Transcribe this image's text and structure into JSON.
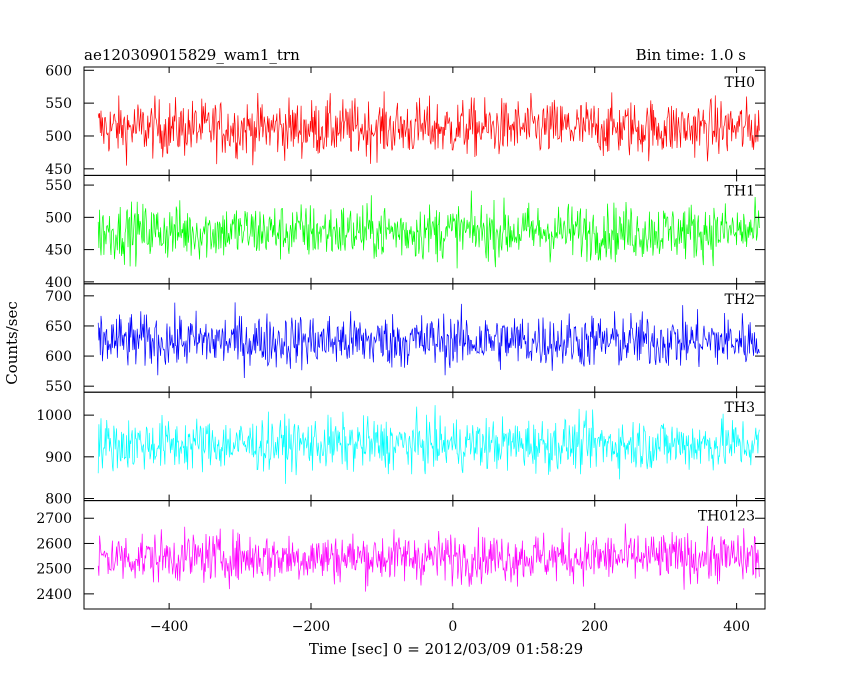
{
  "header": {
    "title": "ae120309015829_wam1_trn",
    "bin_time": "Bin time: 1.0 s"
  },
  "axes": {
    "xlabel": "Time [sec] 0 = 2012/03/09 01:58:29",
    "ylabel": "Counts/sec"
  },
  "chart_data": {
    "type": "line",
    "title": "ae120309015829_wam1_trn",
    "subtitle": "Bin time: 1.0 s",
    "xlabel": "Time [sec] 0 = 2012/03/09 01:58:29",
    "ylabel": "Counts/sec",
    "xlim": [
      -520,
      440
    ],
    "x_start": -500,
    "x_end": 432,
    "bin_time": 1.0,
    "xticks": [
      -400,
      -200,
      0,
      200,
      400
    ],
    "grid": false,
    "series": [
      {
        "name": "TH0",
        "color": "#ff0000",
        "ylim": [
          440,
          605
        ],
        "yticks": [
          450,
          500,
          550,
          600
        ],
        "mean": 512,
        "noise": 22,
        "min": 440,
        "max": 605
      },
      {
        "name": "TH1",
        "color": "#00ff00",
        "ylim": [
          397,
          565
        ],
        "yticks": [
          400,
          450,
          500,
          550
        ],
        "mean": 478,
        "noise": 22,
        "min": 400,
        "max": 562
      },
      {
        "name": "TH2",
        "color": "#0000ff",
        "ylim": [
          540,
          720
        ],
        "yticks": [
          550,
          600,
          650,
          700
        ],
        "mean": 625,
        "noise": 23,
        "min": 545,
        "max": 715
      },
      {
        "name": "TH3",
        "color": "#00ffff",
        "ylim": [
          795,
          1055
        ],
        "yticks": [
          800,
          900,
          1000
        ],
        "mean": 930,
        "noise": 32,
        "min": 820,
        "max": 1050
      },
      {
        "name": "TH0123",
        "color": "#ff00ff",
        "ylim": [
          2340,
          2770
        ],
        "yticks": [
          2400,
          2500,
          2600,
          2700
        ],
        "mean": 2545,
        "noise": 50,
        "min": 2390,
        "max": 2765
      }
    ]
  }
}
